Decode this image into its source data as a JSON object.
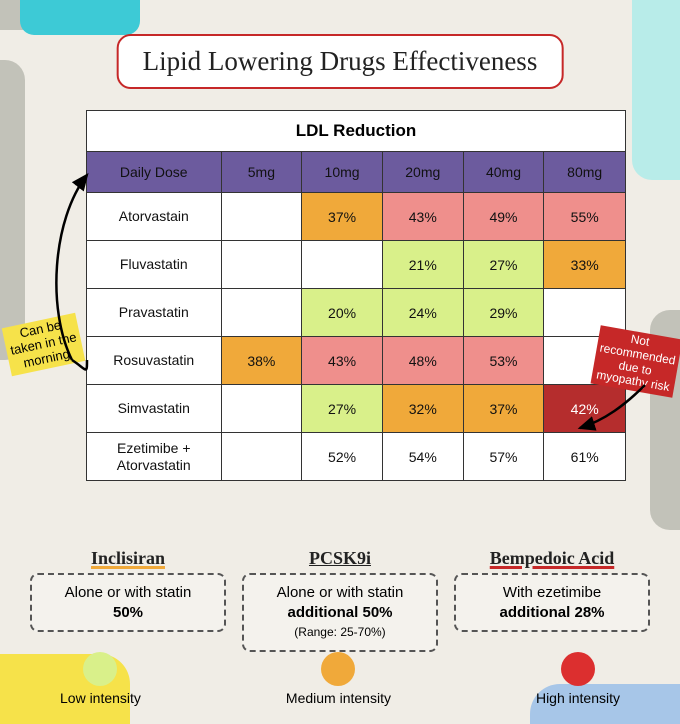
{
  "title": "Lipid Lowering Drugs Effectiveness",
  "table": {
    "caption": "LDL Reduction",
    "corner": "Daily Dose",
    "doses": [
      "5mg",
      "10mg",
      "20mg",
      "40mg",
      "80mg"
    ],
    "rows": [
      {
        "drug": "Atorvastain",
        "cells": [
          {
            "v": ""
          },
          {
            "v": "37%",
            "c": "med"
          },
          {
            "v": "43%",
            "c": "high"
          },
          {
            "v": "49%",
            "c": "high"
          },
          {
            "v": "55%",
            "c": "high"
          }
        ]
      },
      {
        "drug": "Fluvastatin",
        "cells": [
          {
            "v": ""
          },
          {
            "v": ""
          },
          {
            "v": "21%",
            "c": "low"
          },
          {
            "v": "27%",
            "c": "low"
          },
          {
            "v": "33%",
            "c": "med"
          }
        ]
      },
      {
        "drug": "Pravastatin",
        "cells": [
          {
            "v": ""
          },
          {
            "v": "20%",
            "c": "low"
          },
          {
            "v": "24%",
            "c": "low"
          },
          {
            "v": "29%",
            "c": "low"
          },
          {
            "v": ""
          }
        ]
      },
      {
        "drug": "Rosuvastatin",
        "cells": [
          {
            "v": "38%",
            "c": "med"
          },
          {
            "v": "43%",
            "c": "high"
          },
          {
            "v": "48%",
            "c": "high"
          },
          {
            "v": "53%",
            "c": "high"
          },
          {
            "v": ""
          }
        ]
      },
      {
        "drug": "Simvastatin",
        "cells": [
          {
            "v": ""
          },
          {
            "v": "27%",
            "c": "low"
          },
          {
            "v": "32%",
            "c": "med"
          },
          {
            "v": "37%",
            "c": "med"
          },
          {
            "v": "42%",
            "c": "dark-red"
          }
        ]
      },
      {
        "drug": "Ezetimibe + Atorvastatin",
        "cells": [
          {
            "v": ""
          },
          {
            "v": "52%"
          },
          {
            "v": "54%"
          },
          {
            "v": "57%"
          },
          {
            "v": "61%"
          }
        ]
      }
    ]
  },
  "colors": {
    "low": "#d9f08a",
    "med": "#f0a93a",
    "high": "#ef8f8c",
    "dark_red": "#b52d2d",
    "title_border": "#c62828",
    "header_bg": "#6c5b9e"
  },
  "callouts": {
    "left": "Can be\ntaken in the\nmorning",
    "right": "Not\nrecommended\ndue to\nmyopathy risk"
  },
  "cards": [
    {
      "title": "Inclisiran",
      "cls": "inclisiran",
      "line1": "Alone or with statin",
      "pct": "50%",
      "range": ""
    },
    {
      "title": "PCSK9i",
      "cls": "pcsk9",
      "line1": "Alone or with statin",
      "pct": "additional 50%",
      "range": "(Range: 25-70%)"
    },
    {
      "title": "Bempedoic Acid",
      "cls": "bempe",
      "line1": "With ezetimibe",
      "pct": "additional 28%",
      "range": ""
    }
  ],
  "legend": [
    {
      "label": "Low intensity",
      "color": "#d9f08a"
    },
    {
      "label": "Medium intensity",
      "color": "#f0a93a"
    },
    {
      "label": "High intensity",
      "color": "#dc2f2f"
    }
  ]
}
